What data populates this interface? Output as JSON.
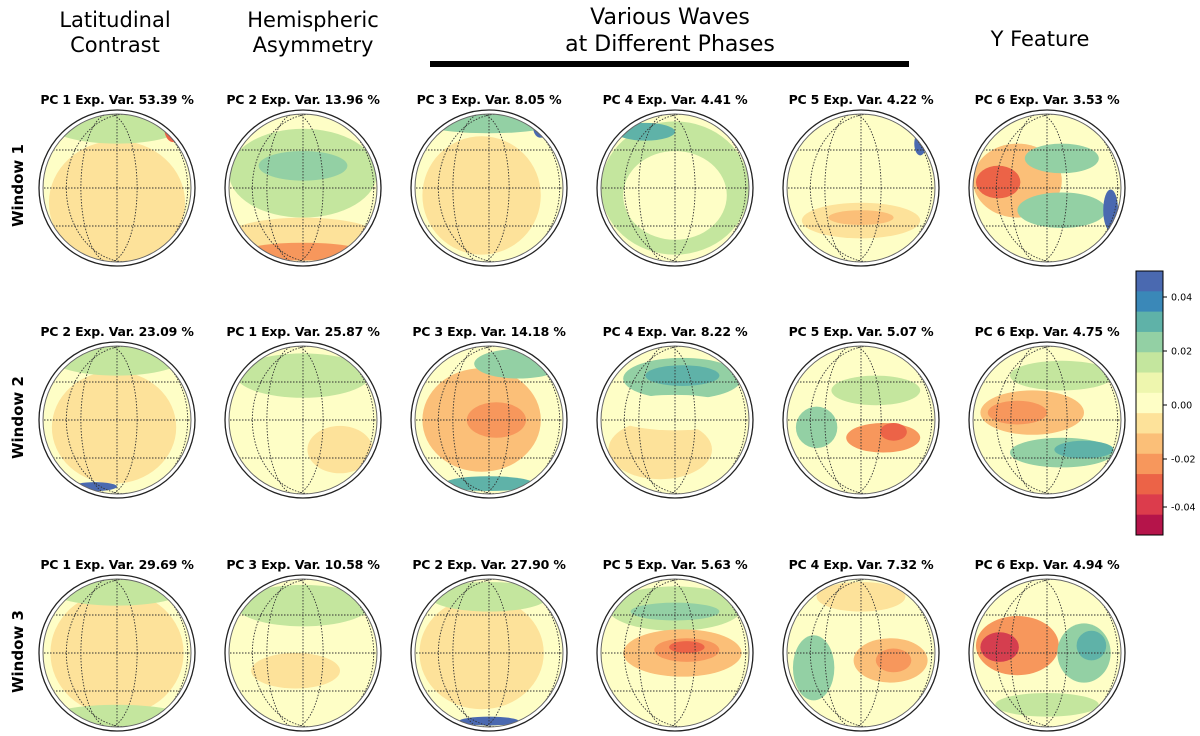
{
  "columns": [
    {
      "line1": "Latitudinal",
      "line2": "Contrast"
    },
    {
      "line1": "Hemispheric",
      "line2": "Asymmetry"
    },
    {
      "line1": "Various Waves",
      "line2": "at Different Phases"
    },
    {
      "line1": "Y Feature",
      "line2": ""
    }
  ],
  "rows": [
    "Window 1",
    "Window 2",
    "Window 3"
  ],
  "panels": [
    [
      "PC 1 Exp. Var. 53.39 %",
      "PC 2 Exp. Var. 13.96 %",
      "PC 3 Exp. Var. 8.05 %",
      "PC 4 Exp. Var. 4.41 %",
      "PC 5 Exp. Var. 4.22 %",
      "PC 6 Exp. Var. 3.53 %"
    ],
    [
      "PC 2 Exp. Var. 23.09 %",
      "PC 1 Exp. Var. 25.87 %",
      "PC 3 Exp. Var. 14.18 %",
      "PC 4 Exp. Var. 8.22 %",
      "PC 5 Exp. Var. 5.07 %",
      "PC 6 Exp. Var. 4.75 %"
    ],
    [
      "PC 1 Exp. Var. 29.69 %",
      "PC 3 Exp. Var. 10.58 %",
      "PC 2 Exp. Var. 27.90 %",
      "PC 5 Exp. Var. 5.63 %",
      "PC 4 Exp. Var. 7.32 %",
      "PC 6 Exp. Var. 4.94 %"
    ]
  ],
  "colorbar": {
    "ticks": [
      "0.04",
      "0.02",
      "0.00",
      "-0.02",
      "-0.04"
    ],
    "colors": [
      "#4a69b0",
      "#3a88b8",
      "#5fb2a8",
      "#93d0a4",
      "#c4e69e",
      "#eef6ae",
      "#fefec6",
      "#fde29a",
      "#fbbf78",
      "#f7975c",
      "#ec6347",
      "#dc3c4c",
      "#b5144a"
    ]
  },
  "colors": {
    "pos3": "#4a69b0",
    "pos2": "#5fb2a8",
    "pos1": "#93d0a4",
    "pos0": "#c4e69e",
    "neutral": "#fefec6",
    "neg0": "#fde29a",
    "neg1": "#fbbf78",
    "neg2": "#f7975c",
    "neg3": "#ec6347",
    "neg4": "#d53e4f"
  }
}
